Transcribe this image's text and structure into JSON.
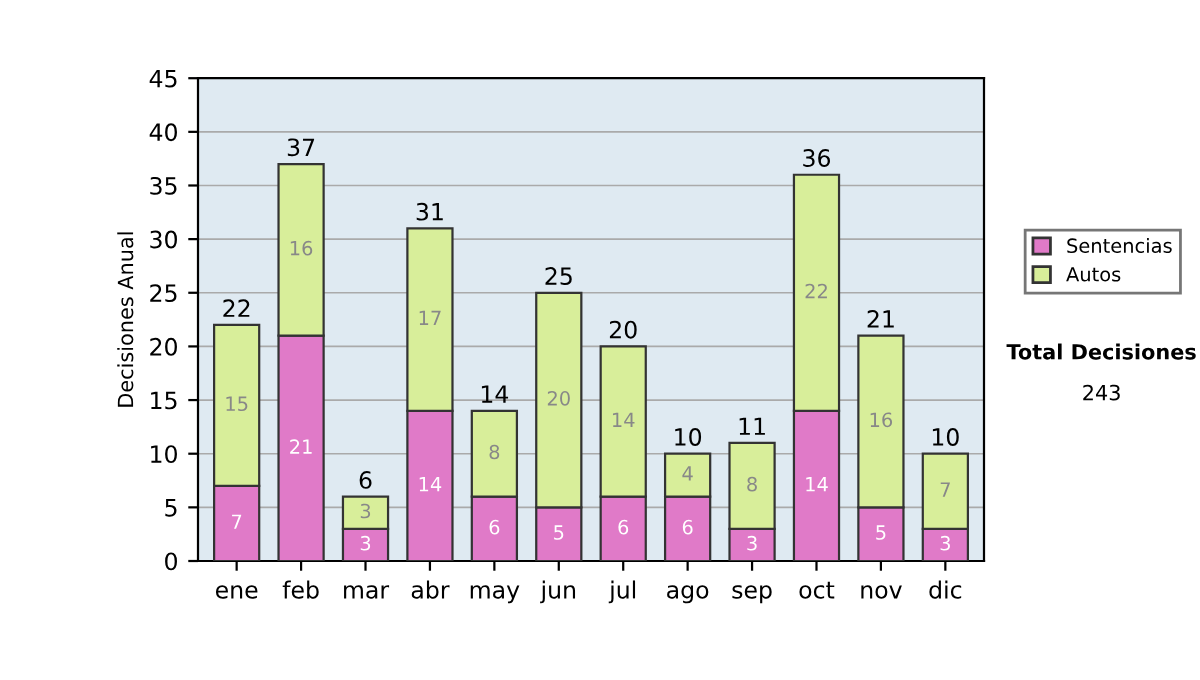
{
  "chart_data": {
    "type": "bar",
    "stacked": true,
    "ylabel": "Decisiones Anual",
    "categories": [
      "ene",
      "feb",
      "mar",
      "abr",
      "may",
      "jun",
      "jul",
      "ago",
      "sep",
      "oct",
      "nov",
      "dic"
    ],
    "series": [
      {
        "name": "Sentencias",
        "color": "#e07ac8",
        "values": [
          7,
          21,
          3,
          14,
          6,
          5,
          6,
          6,
          3,
          14,
          5,
          3
        ]
      },
      {
        "name": "Autos",
        "color": "#d8ee9a",
        "values": [
          15,
          16,
          3,
          17,
          8,
          20,
          14,
          4,
          8,
          22,
          16,
          7
        ]
      }
    ],
    "data_labels": true,
    "totals": [
      "22",
      "37",
      "6",
      "31",
      "14",
      "25",
      "20",
      "10",
      "11",
      "36",
      "21",
      "10"
    ],
    "ylim": [
      0,
      45
    ],
    "yticks": [
      0,
      5,
      10,
      15,
      20,
      25,
      30,
      35,
      40,
      45
    ],
    "grid": "y",
    "legend": "right",
    "annotations": [
      "Total Decisiones",
      "243"
    ]
  }
}
